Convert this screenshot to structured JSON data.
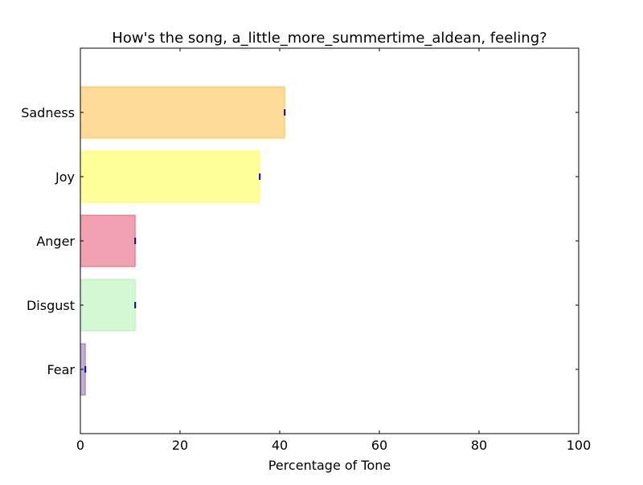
{
  "chart_data": {
    "type": "bar",
    "orientation": "horizontal",
    "title": "How's the song, a_little_more_summertime_aldean, feeling?",
    "xlabel": "Percentage of Tone",
    "ylabel": "",
    "xlim": [
      0,
      100
    ],
    "x_ticks": [
      0,
      20,
      40,
      60,
      80,
      100
    ],
    "categories": [
      "Sadness",
      "Joy",
      "Anger",
      "Disgust",
      "Fear"
    ],
    "values": [
      41,
      36,
      11,
      11,
      1
    ],
    "bar_colors": [
      "#FFA500",
      "#FFFF00",
      "#DC143C",
      "#90EE90",
      "#663399"
    ],
    "bar_alpha": 0.4,
    "error_marker_color": "#0000CC",
    "grid": false,
    "legend": "none"
  }
}
